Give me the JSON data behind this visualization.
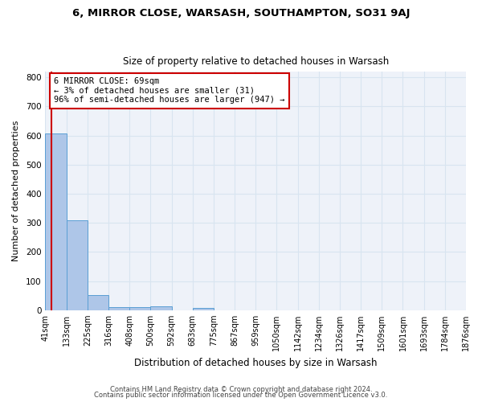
{
  "title": "6, MIRROR CLOSE, WARSASH, SOUTHAMPTON, SO31 9AJ",
  "subtitle": "Size of property relative to detached houses in Warsash",
  "xlabel": "Distribution of detached houses by size in Warsash",
  "ylabel": "Number of detached properties",
  "bin_labels": [
    "41sqm",
    "133sqm",
    "225sqm",
    "316sqm",
    "408sqm",
    "500sqm",
    "592sqm",
    "683sqm",
    "775sqm",
    "867sqm",
    "959sqm",
    "1050sqm",
    "1142sqm",
    "1234sqm",
    "1326sqm",
    "1417sqm",
    "1509sqm",
    "1601sqm",
    "1693sqm",
    "1784sqm",
    "1876sqm"
  ],
  "bar_heights": [
    607,
    310,
    52,
    10,
    12,
    13,
    0,
    8,
    0,
    0,
    0,
    0,
    0,
    0,
    0,
    0,
    0,
    0,
    0,
    0
  ],
  "bar_color": "#aec6e8",
  "bar_edge_color": "#5a9fd4",
  "vline_x_bin": 0.3,
  "property_label": "6 MIRROR CLOSE: 69sqm",
  "annotation_line1": "← 3% of detached houses are smaller (31)",
  "annotation_line2": "96% of semi-detached houses are larger (947) →",
  "vline_color": "#cc0000",
  "annotation_box_color": "#ffffff",
  "annotation_box_edge": "#cc0000",
  "ylim": [
    0,
    820
  ],
  "yticks": [
    0,
    100,
    200,
    300,
    400,
    500,
    600,
    700,
    800
  ],
  "grid_color": "#d8e4f0",
  "background_color": "#eef2f9",
  "footer_line1": "Contains HM Land Registry data © Crown copyright and database right 2024.",
  "footer_line2": "Contains public sector information licensed under the Open Government Licence v3.0.",
  "n_bins": 20
}
